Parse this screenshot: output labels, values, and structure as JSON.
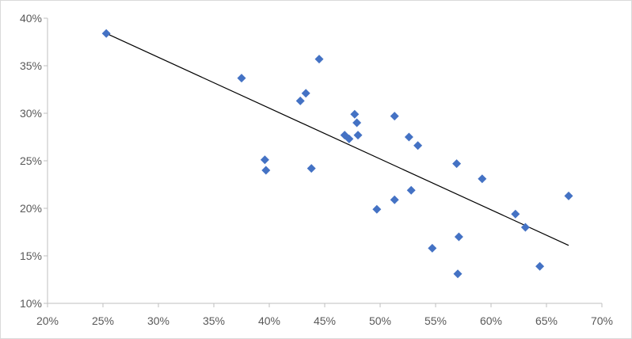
{
  "chart_data": {
    "type": "scatter",
    "title": "",
    "xlabel": "",
    "ylabel": "",
    "xlim": [
      0.2,
      0.7
    ],
    "ylim": [
      0.1,
      0.4
    ],
    "x_ticks": [
      0.2,
      0.25,
      0.3,
      0.35,
      0.4,
      0.45,
      0.5,
      0.55,
      0.6,
      0.65,
      0.7
    ],
    "x_tick_labels": [
      "20%",
      "25%",
      "30%",
      "35%",
      "40%",
      "45%",
      "50%",
      "55%",
      "60%",
      "65%",
      "70%"
    ],
    "y_ticks": [
      0.1,
      0.15,
      0.2,
      0.25,
      0.3,
      0.35,
      0.4
    ],
    "y_tick_labels": [
      "10%",
      "15%",
      "20%",
      "25%",
      "30%",
      "35%",
      "40%"
    ],
    "grid": false,
    "legend": "none",
    "marker": "diamond",
    "marker_color": "#4472C4",
    "trendline_color": "#000000",
    "axis_color": "#bfbfbf",
    "series": [
      {
        "points": [
          [
            0.253,
            0.384
          ],
          [
            0.375,
            0.337
          ],
          [
            0.396,
            0.251
          ],
          [
            0.397,
            0.24
          ],
          [
            0.428,
            0.313
          ],
          [
            0.433,
            0.321
          ],
          [
            0.438,
            0.242
          ],
          [
            0.445,
            0.357
          ],
          [
            0.468,
            0.277
          ],
          [
            0.472,
            0.273
          ],
          [
            0.477,
            0.299
          ],
          [
            0.479,
            0.29
          ],
          [
            0.48,
            0.277
          ],
          [
            0.497,
            0.199
          ],
          [
            0.513,
            0.297
          ],
          [
            0.513,
            0.209
          ],
          [
            0.526,
            0.275
          ],
          [
            0.528,
            0.219
          ],
          [
            0.534,
            0.266
          ],
          [
            0.547,
            0.158
          ],
          [
            0.569,
            0.247
          ],
          [
            0.57,
            0.131
          ],
          [
            0.571,
            0.17
          ],
          [
            0.592,
            0.231
          ],
          [
            0.622,
            0.194
          ],
          [
            0.631,
            0.18
          ],
          [
            0.644,
            0.139
          ],
          [
            0.67,
            0.213
          ]
        ]
      }
    ],
    "trendline": {
      "type": "linear",
      "x": [
        0.253,
        0.67
      ],
      "y": [
        0.384,
        0.161
      ]
    }
  }
}
